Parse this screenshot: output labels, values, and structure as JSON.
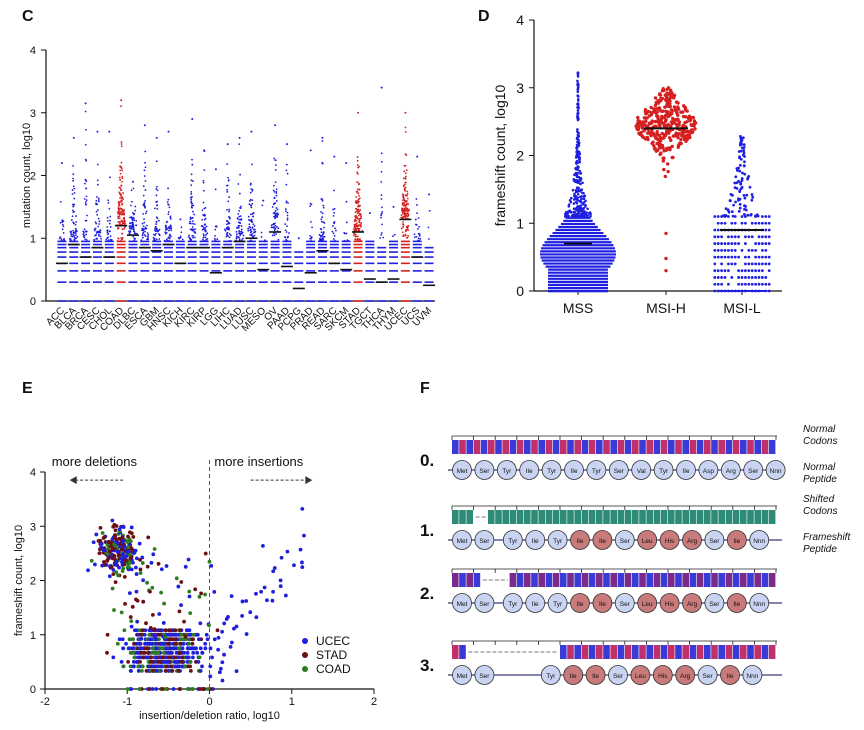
{
  "panels": {
    "c": {
      "label": "C"
    },
    "d": {
      "label": "D"
    },
    "e": {
      "label": "E"
    },
    "f": {
      "label": "F"
    }
  },
  "colors": {
    "blue": "#1f1fe0",
    "red": "#d62020",
    "maroon": "#6b0f12",
    "green": "#2e7d1e",
    "base_a": "#3a3ad6",
    "base_g": "#2e8b78",
    "base_t": "#7a2a8a",
    "base_c": "#c0306a",
    "normal_aa": "#c9d4f2",
    "shift_aa": "#c97a7a"
  },
  "chart_data": [
    {
      "id": "C",
      "type": "scatter",
      "ylabel": "mutation count, log10",
      "xlabel": "",
      "ylim": [
        0,
        4
      ],
      "yticks": [
        "0",
        "1",
        "2",
        "3",
        "4"
      ],
      "categories": [
        "ACC",
        "BLCA",
        "BRCA",
        "CESC",
        "CHOL",
        "COAD",
        "DLBC",
        "ESCA",
        "GBM",
        "HNSC",
        "KICH",
        "KIRC",
        "KIRP",
        "LGG",
        "LIHC",
        "LUAD",
        "LUSC",
        "MESO",
        "OV",
        "PAAD",
        "PCPG",
        "PRAD",
        "READ",
        "SARC",
        "SKCM",
        "STAD",
        "TGCT",
        "THCA",
        "THYM",
        "UCEC",
        "UCS",
        "UVM"
      ],
      "medians": [
        0.6,
        0.9,
        0.7,
        0.85,
        0.7,
        1.2,
        1.05,
        0.85,
        0.8,
        0.9,
        0.6,
        0.85,
        0.85,
        0.45,
        0.85,
        0.95,
        1.0,
        0.5,
        1.1,
        0.55,
        0.2,
        0.45,
        0.8,
        0.6,
        0.5,
        1.1,
        0.35,
        0.3,
        0.35,
        1.3,
        0.7,
        0.25
      ],
      "maxima": [
        2.2,
        2.6,
        3.15,
        2.7,
        2.7,
        3.2,
        1.9,
        2.8,
        2.6,
        2.7,
        1.3,
        2.9,
        2.4,
        2.1,
        2.5,
        2.6,
        2.7,
        1.6,
        2.8,
        2.5,
        1.0,
        2.4,
        2.6,
        2.3,
        2.2,
        3.0,
        1.4,
        3.4,
        1.5,
        3.0,
        2.3,
        1.7
      ],
      "highlight": [
        "COAD",
        "STAD",
        "UCEC"
      ]
    },
    {
      "id": "D",
      "type": "scatter",
      "ylabel": "frameshift count, log10",
      "ylim": [
        0,
        4
      ],
      "yticks": [
        "0",
        "1",
        "2",
        "3",
        "4"
      ],
      "categories": [
        "MSS",
        "MSI-H",
        "MSI-L"
      ],
      "medians": [
        0.7,
        2.4,
        0.9
      ],
      "ranges": [
        [
          0,
          3.2
        ],
        [
          0.3,
          3.0
        ],
        [
          0,
          2.35
        ]
      ]
    },
    {
      "id": "E",
      "type": "scatter",
      "xlabel": "insertion/deletion ratio, log10",
      "ylabel": "frameshift count, log10",
      "xlim": [
        -2,
        2
      ],
      "ylim": [
        0,
        4
      ],
      "xticks": [
        "-2",
        "-1",
        "0",
        "1",
        "2"
      ],
      "yticks": [
        "0",
        "1",
        "2",
        "3",
        "4"
      ],
      "annotations": {
        "left": "more deletions",
        "right": "more insertions"
      },
      "series": [
        {
          "name": "UCEC"
        },
        {
          "name": "STAD"
        },
        {
          "name": "COAD"
        }
      ]
    }
  ],
  "panel_f": {
    "rows": [
      {
        "label": "0.",
        "right_top": "Normal Codons",
        "right_bottom": "Normal Peptide",
        "peptide": [
          "Met",
          "Ser",
          "Tyr",
          "Ile",
          "Tyr",
          "Ile",
          "Tyr",
          "Ser",
          "Val",
          "Tyr",
          "Ile",
          "Asp",
          "Arg",
          "Ser",
          "Nnn"
        ]
      },
      {
        "label": "1.",
        "right_top": "Shifted Codons",
        "right_bottom": "Frameshift Peptide",
        "peptide": [
          "Met",
          "Ser",
          "Tyr",
          "Ile",
          "Tyr",
          "Ile",
          "Ile",
          "Ser",
          "Leu",
          "His",
          "Arg",
          "Ser",
          "Ile",
          "Nnn"
        ]
      },
      {
        "label": "2.",
        "right_top": "",
        "right_bottom": "",
        "peptide": [
          "Met",
          "Ser",
          "Tyr",
          "Ile",
          "Tyr",
          "Ile",
          "Ile",
          "Ser",
          "Leu",
          "His",
          "Arg",
          "Ser",
          "Ile",
          "Nnn"
        ]
      },
      {
        "label": "3.",
        "right_top": "",
        "right_bottom": "",
        "peptide": [
          "Met",
          "Ser",
          "Tyr",
          "Ile",
          "Ile",
          "Ser",
          "Leu",
          "His",
          "Arg",
          "Ser",
          "Ile",
          "Nnn"
        ]
      }
    ],
    "right_labels": [
      "Normal",
      "Codons",
      "Normal",
      "Peptide",
      "Shifted",
      "Codons",
      "Frameshift",
      "Peptide"
    ]
  }
}
